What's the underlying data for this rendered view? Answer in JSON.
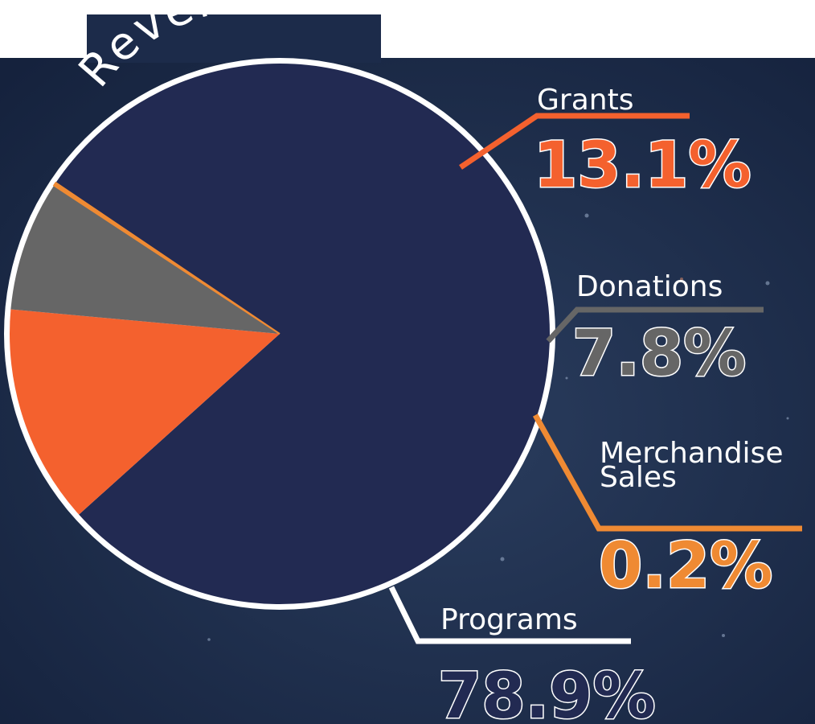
{
  "chart_data": {
    "type": "pie",
    "title": "Revenue",
    "slices": [
      {
        "label": "Programs",
        "label_lines": [
          "Programs"
        ],
        "value": 78.9,
        "display": "78.9%",
        "color": "#222a52",
        "pct_fill": "#222a52",
        "pct_stroke": "#ffffff",
        "leader_color": "#ffffff"
      },
      {
        "label": "Grants",
        "label_lines": [
          "Grants"
        ],
        "value": 13.1,
        "display": "13.1%",
        "color": "#f4612e",
        "pct_fill": "#f4612e",
        "pct_stroke": "#ffffff",
        "leader_color": "#f4612e"
      },
      {
        "label": "Donations",
        "label_lines": [
          "Donations"
        ],
        "value": 7.8,
        "display": "7.8%",
        "color": "#666666",
        "pct_fill": "#666666",
        "pct_stroke": "#ffffff",
        "leader_color": "#666666"
      },
      {
        "label": "Merchandise Sales",
        "label_lines": [
          "Merchandise",
          "Sales"
        ],
        "value": 0.2,
        "display": "0.2%",
        "color": "#ef8a33",
        "pct_fill": "#ef8a33",
        "pct_stroke": "#ffffff",
        "leader_color": "#ef8a33"
      }
    ],
    "legend": "none",
    "background": "#1c2b4a"
  }
}
